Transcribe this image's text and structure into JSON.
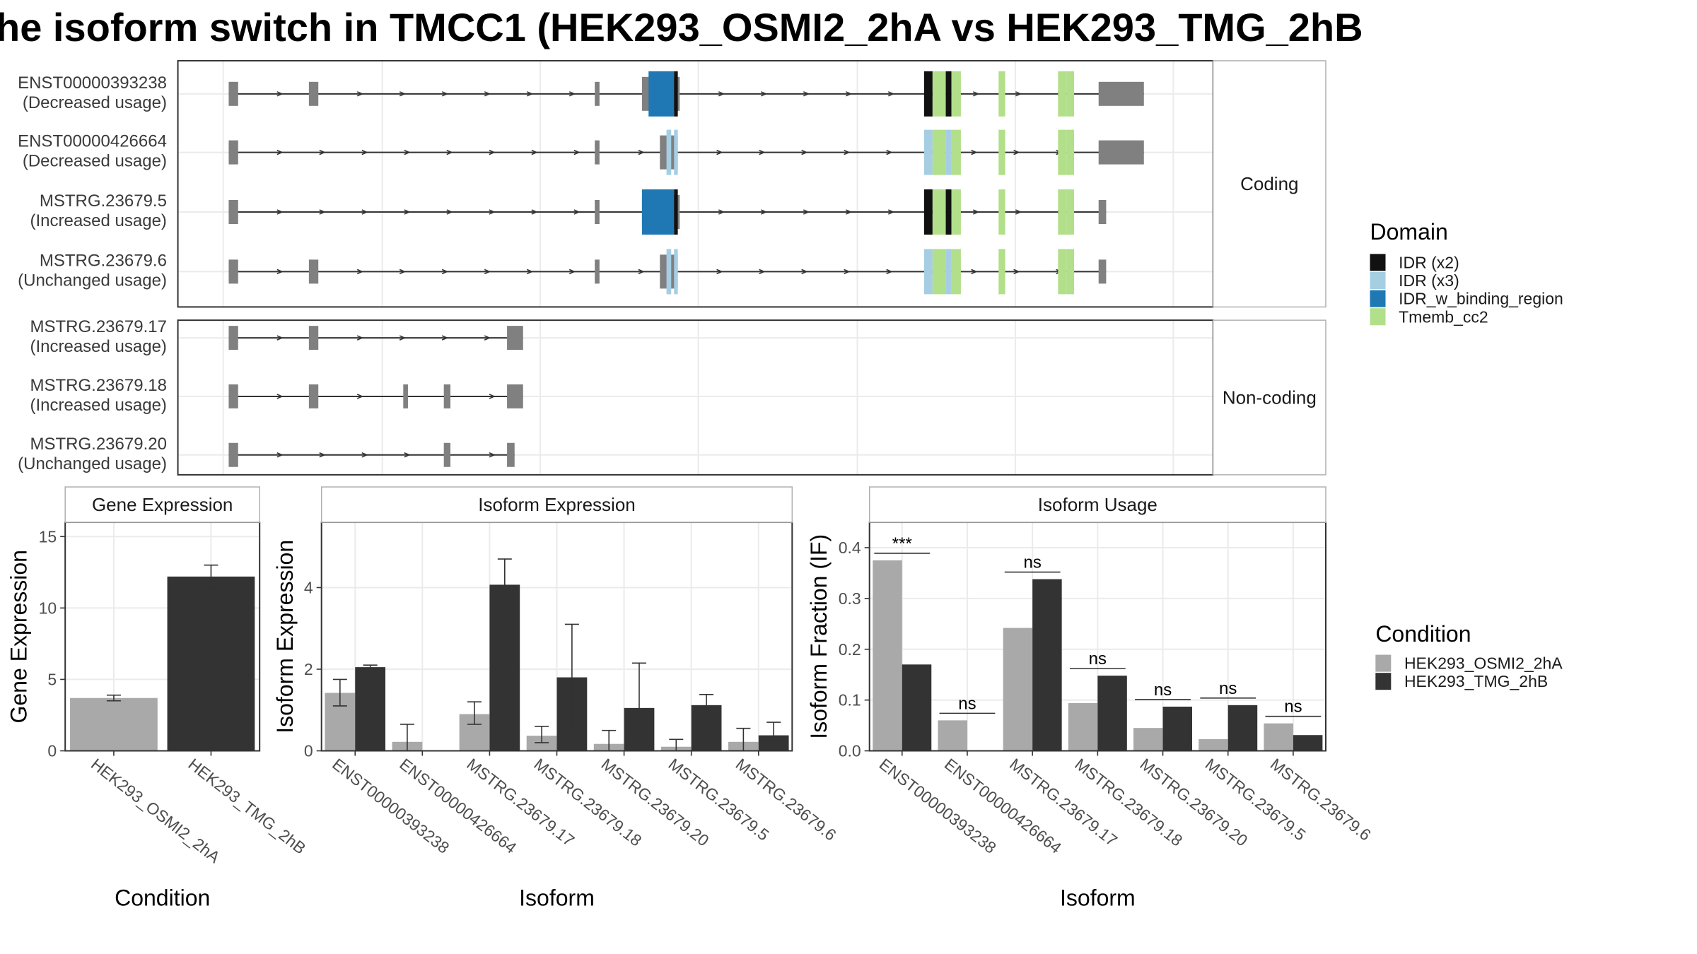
{
  "title": "he isoform switch in TMCC1 (HEK293_OSMI2_2hA vs HEK293_TMG_2hB",
  "colors": {
    "exon": "#808080",
    "IDR (x2)": "#111111",
    "IDR (x3)": "#a6cee3",
    "IDR_w_binding_region": "#1f78b4",
    "Tmemb_cc2": "#b2df8a",
    "HEK293_OSMI2_2hA": "#a9a9a9",
    "HEK293_TMG_2hB": "#333333",
    "panel_border": "#333333",
    "strip_border": "#b0b0b0",
    "grid": "#ebebeb"
  },
  "chart_data": [
    {
      "type": "gene-structure",
      "description_id": "transcript-structure",
      "genomic_x_range": [
        0,
        100
      ],
      "facets": [
        {
          "label": "Coding",
          "transcripts": [
            {
              "id": "ENST00000393238",
              "usage": "(Decreased usage)",
              "exons": [
                [
                  0,
                  1
                ],
                [
                  8.5,
                  9.5
                ],
                [
                  38.8,
                  39.3
                ],
                [
                  43.8,
                  47.8
                ],
                [
                  92.2,
                  97
                ]
              ],
              "domains": [
                {
                  "type": "IDR_w_binding_region",
                  "start": 44.5,
                  "end": 47.2
                },
                {
                  "type": "IDR (x2)",
                  "start": 47.2,
                  "end": 47.6
                },
                {
                  "type": "IDR (x2)",
                  "start": 73.7,
                  "end": 74.6
                },
                {
                  "type": "Tmemb_cc2",
                  "start": 74.6,
                  "end": 76
                },
                {
                  "type": "IDR (x2)",
                  "start": 76,
                  "end": 76.6
                },
                {
                  "type": "Tmemb_cc2",
                  "start": 76.6,
                  "end": 77.6
                },
                {
                  "type": "Tmemb_cc2",
                  "start": 81.6,
                  "end": 82.3
                },
                {
                  "type": "Tmemb_cc2",
                  "start": 87.9,
                  "end": 88.8
                },
                {
                  "type": "Tmemb_cc2",
                  "start": 88.8,
                  "end": 89.6
                }
              ],
              "cds_span": [
                44.5,
                89.6
              ]
            },
            {
              "id": "ENST00000426664",
              "usage": "(Decreased usage)",
              "exons": [
                [
                  0,
                  1
                ],
                [
                  38.8,
                  39.3
                ],
                [
                  45.7,
                  47.6
                ],
                [
                  92.2,
                  97
                ]
              ],
              "domains": [
                {
                  "type": "IDR (x3)",
                  "start": 46.4,
                  "end": 46.9
                },
                {
                  "type": "IDR (x3)",
                  "start": 47.2,
                  "end": 47.6
                },
                {
                  "type": "IDR (x3)",
                  "start": 73.7,
                  "end": 74.6
                },
                {
                  "type": "Tmemb_cc2",
                  "start": 74.6,
                  "end": 76
                },
                {
                  "type": "IDR (x3)",
                  "start": 76,
                  "end": 76.6
                },
                {
                  "type": "Tmemb_cc2",
                  "start": 76.6,
                  "end": 77.6
                },
                {
                  "type": "Tmemb_cc2",
                  "start": 81.6,
                  "end": 82.3
                },
                {
                  "type": "Tmemb_cc2",
                  "start": 87.9,
                  "end": 88.8
                },
                {
                  "type": "Tmemb_cc2",
                  "start": 88.8,
                  "end": 89.6
                }
              ],
              "cds_span": [
                46.4,
                89.6
              ]
            },
            {
              "id": "MSTRG.23679.5",
              "usage": "(Increased usage)",
              "exons": [
                [
                  0,
                  1
                ],
                [
                  38.8,
                  39.3
                ],
                [
                  43.8,
                  47.8
                ],
                [
                  92.2,
                  93
                ]
              ],
              "domains": [
                {
                  "type": "IDR_w_binding_region",
                  "start": 43.8,
                  "end": 47.2
                },
                {
                  "type": "IDR (x2)",
                  "start": 47.2,
                  "end": 47.6
                },
                {
                  "type": "IDR (x2)",
                  "start": 73.7,
                  "end": 74.6
                },
                {
                  "type": "Tmemb_cc2",
                  "start": 74.6,
                  "end": 76
                },
                {
                  "type": "IDR (x2)",
                  "start": 76,
                  "end": 76.6
                },
                {
                  "type": "Tmemb_cc2",
                  "start": 76.6,
                  "end": 77.6
                },
                {
                  "type": "Tmemb_cc2",
                  "start": 81.6,
                  "end": 82.3
                },
                {
                  "type": "Tmemb_cc2",
                  "start": 87.9,
                  "end": 88.8
                },
                {
                  "type": "Tmemb_cc2",
                  "start": 88.8,
                  "end": 89.6
                }
              ],
              "cds_span": [
                43.8,
                89.6
              ]
            },
            {
              "id": "MSTRG.23679.6",
              "usage": "(Unchanged usage)",
              "exons": [
                [
                  0,
                  1
                ],
                [
                  8.5,
                  9.5
                ],
                [
                  38.8,
                  39.3
                ],
                [
                  45.7,
                  47.6
                ],
                [
                  92.2,
                  93
                ]
              ],
              "domains": [
                {
                  "type": "IDR (x3)",
                  "start": 46.4,
                  "end": 46.9
                },
                {
                  "type": "IDR (x3)",
                  "start": 47.2,
                  "end": 47.6
                },
                {
                  "type": "IDR (x3)",
                  "start": 73.7,
                  "end": 74.6
                },
                {
                  "type": "Tmemb_cc2",
                  "start": 74.6,
                  "end": 76
                },
                {
                  "type": "IDR (x3)",
                  "start": 76,
                  "end": 76.6
                },
                {
                  "type": "Tmemb_cc2",
                  "start": 76.6,
                  "end": 77.6
                },
                {
                  "type": "Tmemb_cc2",
                  "start": 81.6,
                  "end": 82.3
                },
                {
                  "type": "Tmemb_cc2",
                  "start": 87.9,
                  "end": 88.8
                },
                {
                  "type": "Tmemb_cc2",
                  "start": 88.8,
                  "end": 89.6
                }
              ],
              "cds_span": [
                46.4,
                89.6
              ]
            }
          ]
        },
        {
          "label": "Non-coding",
          "transcripts": [
            {
              "id": "MSTRG.23679.17",
              "usage": "(Increased usage)",
              "exons": [
                [
                  0,
                  1
                ],
                [
                  8.5,
                  9.5
                ],
                [
                  29.5,
                  31.2
                ]
              ],
              "domains": []
            },
            {
              "id": "MSTRG.23679.18",
              "usage": "(Increased usage)",
              "exons": [
                [
                  0,
                  1
                ],
                [
                  8.5,
                  9.5
                ],
                [
                  18.5,
                  19
                ],
                [
                  22.8,
                  23.5
                ],
                [
                  29.5,
                  31.2
                ]
              ],
              "domains": []
            },
            {
              "id": "MSTRG.23679.20",
              "usage": "(Unchanged usage)",
              "exons": [
                [
                  0,
                  1
                ],
                [
                  22.8,
                  23.5
                ],
                [
                  29.5,
                  30.3
                ]
              ],
              "domains": []
            }
          ]
        }
      ]
    },
    {
      "type": "bar",
      "panel": "Gene Expression",
      "xlabel": "Condition",
      "ylabel": "Gene Expression",
      "ylim": [
        0,
        16
      ],
      "yticks": [
        "0",
        "5",
        "10",
        "15"
      ],
      "categories": [
        "HEK293_OSMI2_2hA",
        "HEK293_TMG_2hB"
      ],
      "values": [
        3.7,
        12.2
      ],
      "err": [
        [
          3.5,
          3.9
        ],
        [
          11.4,
          13.0
        ]
      ]
    },
    {
      "type": "bar",
      "panel": "Isoform Expression",
      "xlabel": "Isoform",
      "ylabel": "Isoform Expression",
      "ylim": [
        0,
        5.6
      ],
      "yticks": [
        "0",
        "2",
        "4"
      ],
      "categories": [
        "ENST00000393238",
        "ENST00000426664",
        "MSTRG.23679.17",
        "MSTRG.23679.18",
        "MSTRG.23679.20",
        "MSTRG.23679.5",
        "MSTRG.23679.6"
      ],
      "series": [
        {
          "name": "HEK293_OSMI2_2hA",
          "values": [
            1.42,
            0.22,
            0.9,
            0.37,
            0.17,
            0.1,
            0.22
          ],
          "err": [
            [
              1.1,
              1.75
            ],
            [
              0,
              0.65
            ],
            [
              0.65,
              1.2
            ],
            [
              0.2,
              0.6
            ],
            [
              0,
              0.5
            ],
            [
              0,
              0.28
            ],
            [
              0,
              0.55
            ]
          ]
        },
        {
          "name": "HEK293_TMG_2hB",
          "values": [
            2.05,
            0.0,
            4.07,
            1.8,
            1.05,
            1.12,
            0.38
          ],
          "err": [
            [
              2.0,
              2.1
            ],
            [
              0,
              0
            ],
            [
              3.45,
              4.7
            ],
            [
              0.5,
              3.1
            ],
            [
              0,
              2.15
            ],
            [
              0.85,
              1.38
            ],
            [
              0.1,
              0.7
            ]
          ]
        }
      ]
    },
    {
      "type": "bar",
      "panel": "Isoform Usage",
      "xlabel": "Isoform",
      "ylabel": "Isoform Fraction (IF)",
      "ylim": [
        0,
        0.45
      ],
      "yticks": [
        "0.0",
        "0.1",
        "0.2",
        "0.3",
        "0.4"
      ],
      "categories": [
        "ENST00000393238",
        "ENST00000426664",
        "MSTRG.23679.17",
        "MSTRG.23679.18",
        "MSTRG.23679.20",
        "MSTRG.23679.5",
        "MSTRG.23679.6"
      ],
      "series": [
        {
          "name": "HEK293_OSMI2_2hA",
          "values": [
            0.375,
            0.06,
            0.242,
            0.094,
            0.045,
            0.023,
            0.054
          ]
        },
        {
          "name": "HEK293_TMG_2hB",
          "values": [
            0.17,
            0.0,
            0.338,
            0.148,
            0.087,
            0.09,
            0.031
          ]
        }
      ],
      "significance": [
        "***",
        "ns",
        "ns",
        "ns",
        "ns",
        "ns",
        "ns"
      ]
    }
  ],
  "legends": {
    "domain": {
      "title": "Domain",
      "items": [
        "IDR (x2)",
        "IDR (x3)",
        "IDR_w_binding_region",
        "Tmemb_cc2"
      ]
    },
    "condition": {
      "title": "Condition",
      "items": [
        "HEK293_OSMI2_2hA",
        "HEK293_TMG_2hB"
      ]
    }
  }
}
